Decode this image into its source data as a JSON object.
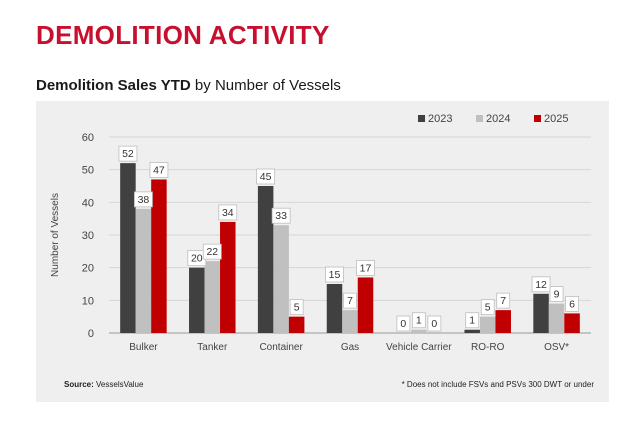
{
  "page": {
    "title": "DEMOLITION ACTIVITY",
    "chart_heading_bold": "Demolition Sales YTD",
    "chart_heading_rest": " by Number of Vessels",
    "source_label": "Source:",
    "source_value": " VesselsValue",
    "footnote": "* Does not include FSVs and PSVs 300 DWT or under"
  },
  "colors": {
    "accent": "#c8102e",
    "series": [
      "#404040",
      "#c0c0c0",
      "#c00000"
    ],
    "panel_bg": "#efefef"
  },
  "chart_data": {
    "type": "bar",
    "title": "Demolition Sales YTD by Number of Vessels",
    "xlabel": "",
    "ylabel": "Number of Vessels",
    "ylim": [
      0,
      60
    ],
    "yticks": [
      0,
      10,
      20,
      30,
      40,
      50,
      60
    ],
    "grid": true,
    "legend_position": "top-right",
    "categories": [
      "Bulker",
      "Tanker",
      "Container",
      "Gas",
      "Vehicle Carrier",
      "RO-RO",
      "OSV*"
    ],
    "series": [
      {
        "name": "2023",
        "values": [
          52,
          20,
          45,
          15,
          0,
          1,
          12
        ]
      },
      {
        "name": "2024",
        "values": [
          38,
          22,
          33,
          7,
          1,
          5,
          9
        ]
      },
      {
        "name": "2025",
        "values": [
          47,
          34,
          5,
          17,
          0,
          7,
          6
        ]
      }
    ]
  }
}
